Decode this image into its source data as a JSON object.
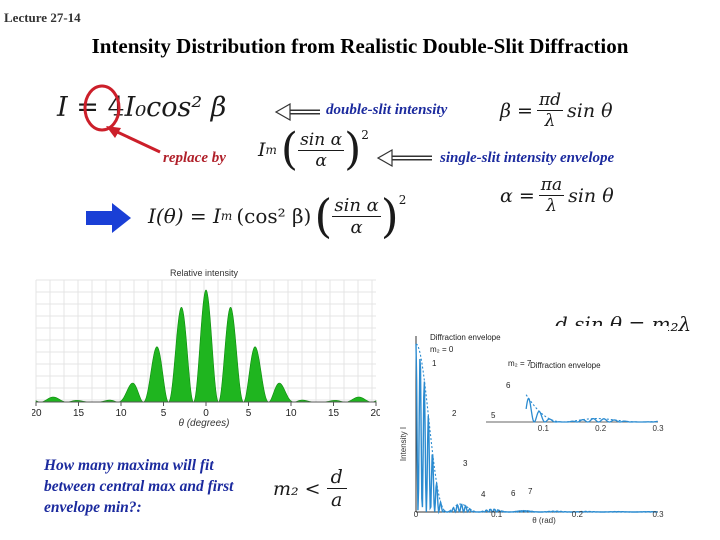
{
  "header": {
    "lecture": "Lecture 27-14",
    "title": "Intensity Distribution from Realistic Double-Slit Diffraction"
  },
  "labels": {
    "double_slit": "double-slit intensity",
    "replace_by": "replace by",
    "single_slit": "single-slit intensity envelope",
    "question": "How many maxima will fit between central max and first envelope min?:"
  },
  "equations": {
    "eq1_lhs": "I = ",
    "eq1_four": "4",
    "eq1_rest": "I₀cos² β",
    "beta_lhs": "β =",
    "beta_num": "πd",
    "beta_den": "λ",
    "beta_rhs": "sin θ",
    "replace_pre": "I",
    "replace_sub": "m",
    "replace_num": "sin α",
    "replace_den": "α",
    "replace_exp": "2",
    "alpha_lhs": "α =",
    "alpha_num": "πa",
    "alpha_den": "λ",
    "alpha_rhs": "sin θ",
    "full_lhs": "I(θ) = I",
    "full_sub": "m",
    "full_mid": "(cos² β)",
    "full_num": "sin α",
    "full_den": "α",
    "full_exp": "2",
    "maxcond": "d sin θ = m₂λ",
    "m2_lhs": "m₂ <",
    "m2_num": "d",
    "m2_den": "a"
  },
  "colors": {
    "blue_label": "#1b2a9e",
    "red_label": "#b0202a",
    "pattern_green": "#1fb51f",
    "curve_blue": "#2b8bd0"
  },
  "chart_data": [
    {
      "type": "area",
      "title": "Relative intensity",
      "xlabel": "θ (degrees)",
      "ylabel": "",
      "x_tick_labels": [
        "20",
        "15",
        "10",
        "5",
        "0",
        "5",
        "10",
        "15",
        "20"
      ],
      "xlim": [
        -20,
        20
      ],
      "model": "cos²(β)·(sinα/α)²",
      "d_over_lambda": 19.5,
      "a_over_lambda": 4.4,
      "legend": "none"
    },
    {
      "type": "line",
      "xlabel": "θ (rad)",
      "ylabel": "Intensity I",
      "x_tick_labels": [
        "0",
        "0.1",
        "0.2",
        "0.3"
      ],
      "xlim": [
        0,
        0.3
      ],
      "annotations": [
        "Diffraction envelope",
        "m₂ = 0",
        "1",
        "2",
        "3",
        "4",
        "6",
        "7",
        "m₂ = 7",
        "6",
        "5",
        "Diffraction envelope"
      ]
    }
  ]
}
